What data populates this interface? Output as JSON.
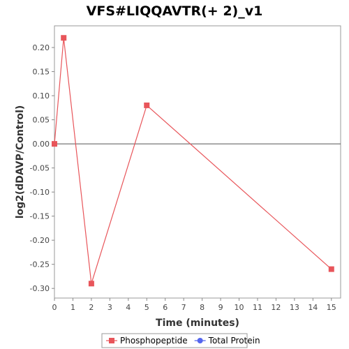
{
  "chart_data": {
    "type": "line",
    "title": "VFS#LIQQAVTR(+ 2)_v1",
    "xlabel": "Time (minutes)",
    "ylabel": "log2(dDAVP/Control)",
    "xlim": [
      0,
      15.5
    ],
    "ylim": [
      -0.32,
      0.245
    ],
    "xticks": [
      0,
      1,
      2,
      3,
      4,
      5,
      6,
      7,
      8,
      9,
      10,
      11,
      12,
      13,
      14,
      15
    ],
    "yticks": [
      0.2,
      0.15,
      0.1,
      0.05,
      0.0,
      -0.05,
      -0.1,
      -0.15,
      -0.2,
      -0.25,
      -0.3
    ],
    "ytick_labels": [
      "0.20",
      "0.15",
      "0.10",
      "0.05",
      "0.00",
      "-0.05",
      "-0.10",
      "-0.15",
      "-0.20",
      "-0.25",
      "-0.30"
    ],
    "grid": false,
    "zero_line": true,
    "legend_position": "bottom",
    "series": [
      {
        "name": "Phosphopeptide",
        "color": "#e8555a",
        "marker": "square",
        "x": [
          0,
          0.5,
          2,
          5,
          15
        ],
        "y": [
          0.0,
          0.22,
          -0.29,
          0.08,
          -0.26
        ]
      },
      {
        "name": "Total Protein",
        "color": "#5566ee",
        "marker": "circle",
        "x": [],
        "y": []
      }
    ]
  }
}
